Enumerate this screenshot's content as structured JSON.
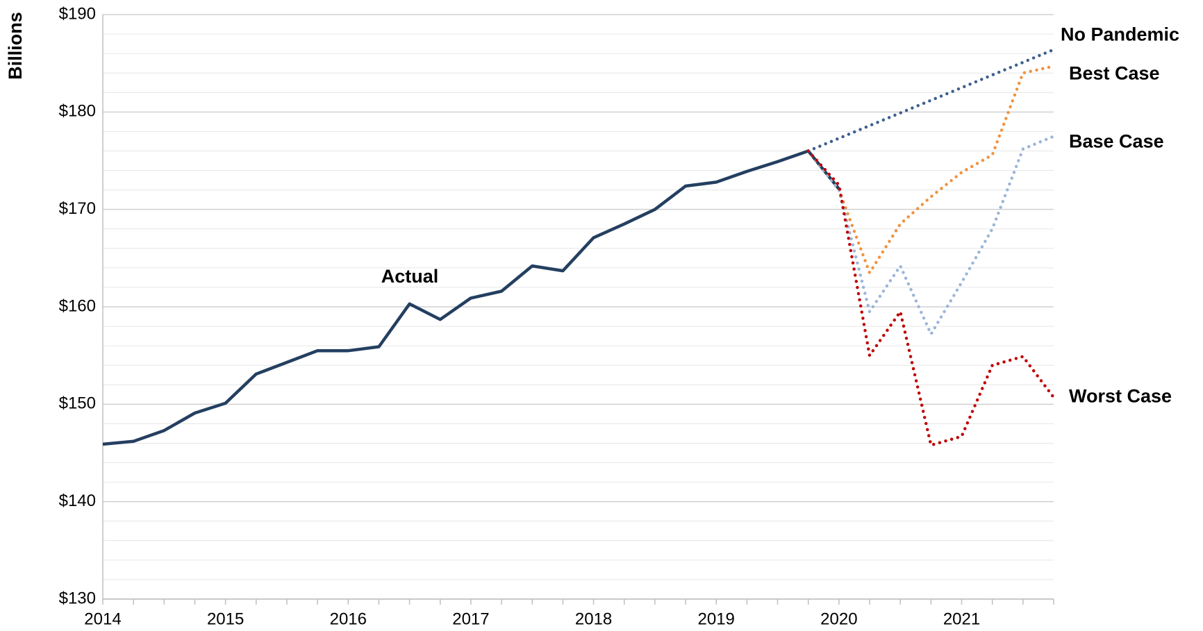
{
  "chart_data": {
    "type": "line",
    "y_label": "Billions",
    "annotation": "Actual",
    "x": [
      2014,
      2014.25,
      2014.5,
      2014.75,
      2015,
      2015.25,
      2015.5,
      2015.75,
      2016,
      2016.25,
      2016.5,
      2016.75,
      2017,
      2017.25,
      2017.5,
      2017.75,
      2018,
      2018.25,
      2018.5,
      2018.75,
      2019,
      2019.25,
      2019.5,
      2019.75,
      2020,
      2020.25,
      2020.5,
      2020.75,
      2021,
      2021.25,
      2021.5,
      2021.75
    ],
    "series": [
      {
        "name": "Actual",
        "color": "#243f60",
        "style": "solid",
        "values": [
          145.9,
          146.2,
          147.3,
          149.1,
          150.1,
          153.1,
          154.3,
          155.5,
          155.5,
          155.9,
          160.3,
          158.7,
          160.9,
          161.6,
          164.2,
          163.7,
          167.1,
          168.5,
          170.0,
          172.4,
          172.8,
          173.9,
          174.9,
          176.0,
          172.1,
          null,
          null,
          null,
          null,
          null,
          null,
          null
        ]
      },
      {
        "name": "No Pandemic",
        "color": "#3d5f8f",
        "style": "dotted",
        "values": [
          null,
          null,
          null,
          null,
          null,
          null,
          null,
          null,
          null,
          null,
          null,
          null,
          null,
          null,
          null,
          null,
          null,
          null,
          null,
          null,
          null,
          null,
          null,
          176.0,
          177.3,
          178.6,
          179.9,
          181.2,
          182.5,
          183.8,
          185.1,
          186.4
        ]
      },
      {
        "name": "Best Case",
        "color": "#f0923e",
        "style": "dotted",
        "values": [
          null,
          null,
          null,
          null,
          null,
          null,
          null,
          null,
          null,
          null,
          null,
          null,
          null,
          null,
          null,
          null,
          null,
          null,
          null,
          null,
          null,
          null,
          null,
          176.0,
          172.0,
          163.5,
          168.5,
          171.3,
          173.8,
          175.6,
          184.0,
          184.7
        ]
      },
      {
        "name": "Base Case",
        "color": "#9bb5d8",
        "style": "dotted",
        "values": [
          null,
          null,
          null,
          null,
          null,
          null,
          null,
          null,
          null,
          null,
          null,
          null,
          null,
          null,
          null,
          null,
          null,
          null,
          null,
          null,
          null,
          null,
          null,
          176.0,
          172.0,
          159.5,
          164.2,
          157.2,
          162.5,
          168.0,
          176.2,
          177.5
        ]
      },
      {
        "name": "Worst Case",
        "color": "#c00000",
        "style": "dotted",
        "values": [
          null,
          null,
          null,
          null,
          null,
          null,
          null,
          null,
          null,
          null,
          null,
          null,
          null,
          null,
          null,
          null,
          null,
          null,
          null,
          null,
          null,
          null,
          null,
          176.0,
          172.5,
          155.0,
          159.5,
          145.8,
          146.7,
          154.0,
          154.9,
          150.7
        ]
      }
    ],
    "xlim": [
      2014,
      2021.75
    ],
    "xticks": [
      2014,
      2015,
      2016,
      2017,
      2018,
      2019,
      2020,
      2021
    ],
    "ylim": [
      130,
      190
    ],
    "yticks": [
      {
        "value": 130,
        "label": "$130"
      },
      {
        "value": 140,
        "label": "$140"
      },
      {
        "value": 150,
        "label": "$150"
      },
      {
        "value": 160,
        "label": "$160"
      },
      {
        "value": 170,
        "label": "$170"
      },
      {
        "value": 180,
        "label": "$180"
      },
      {
        "value": 190,
        "label": "$190"
      }
    ],
    "yticks_minor": [
      132,
      134,
      136,
      138,
      142,
      144,
      146,
      148,
      152,
      154,
      156,
      158,
      162,
      164,
      166,
      168,
      172,
      174,
      176,
      178,
      182,
      184,
      186,
      188
    ],
    "grid": true
  }
}
